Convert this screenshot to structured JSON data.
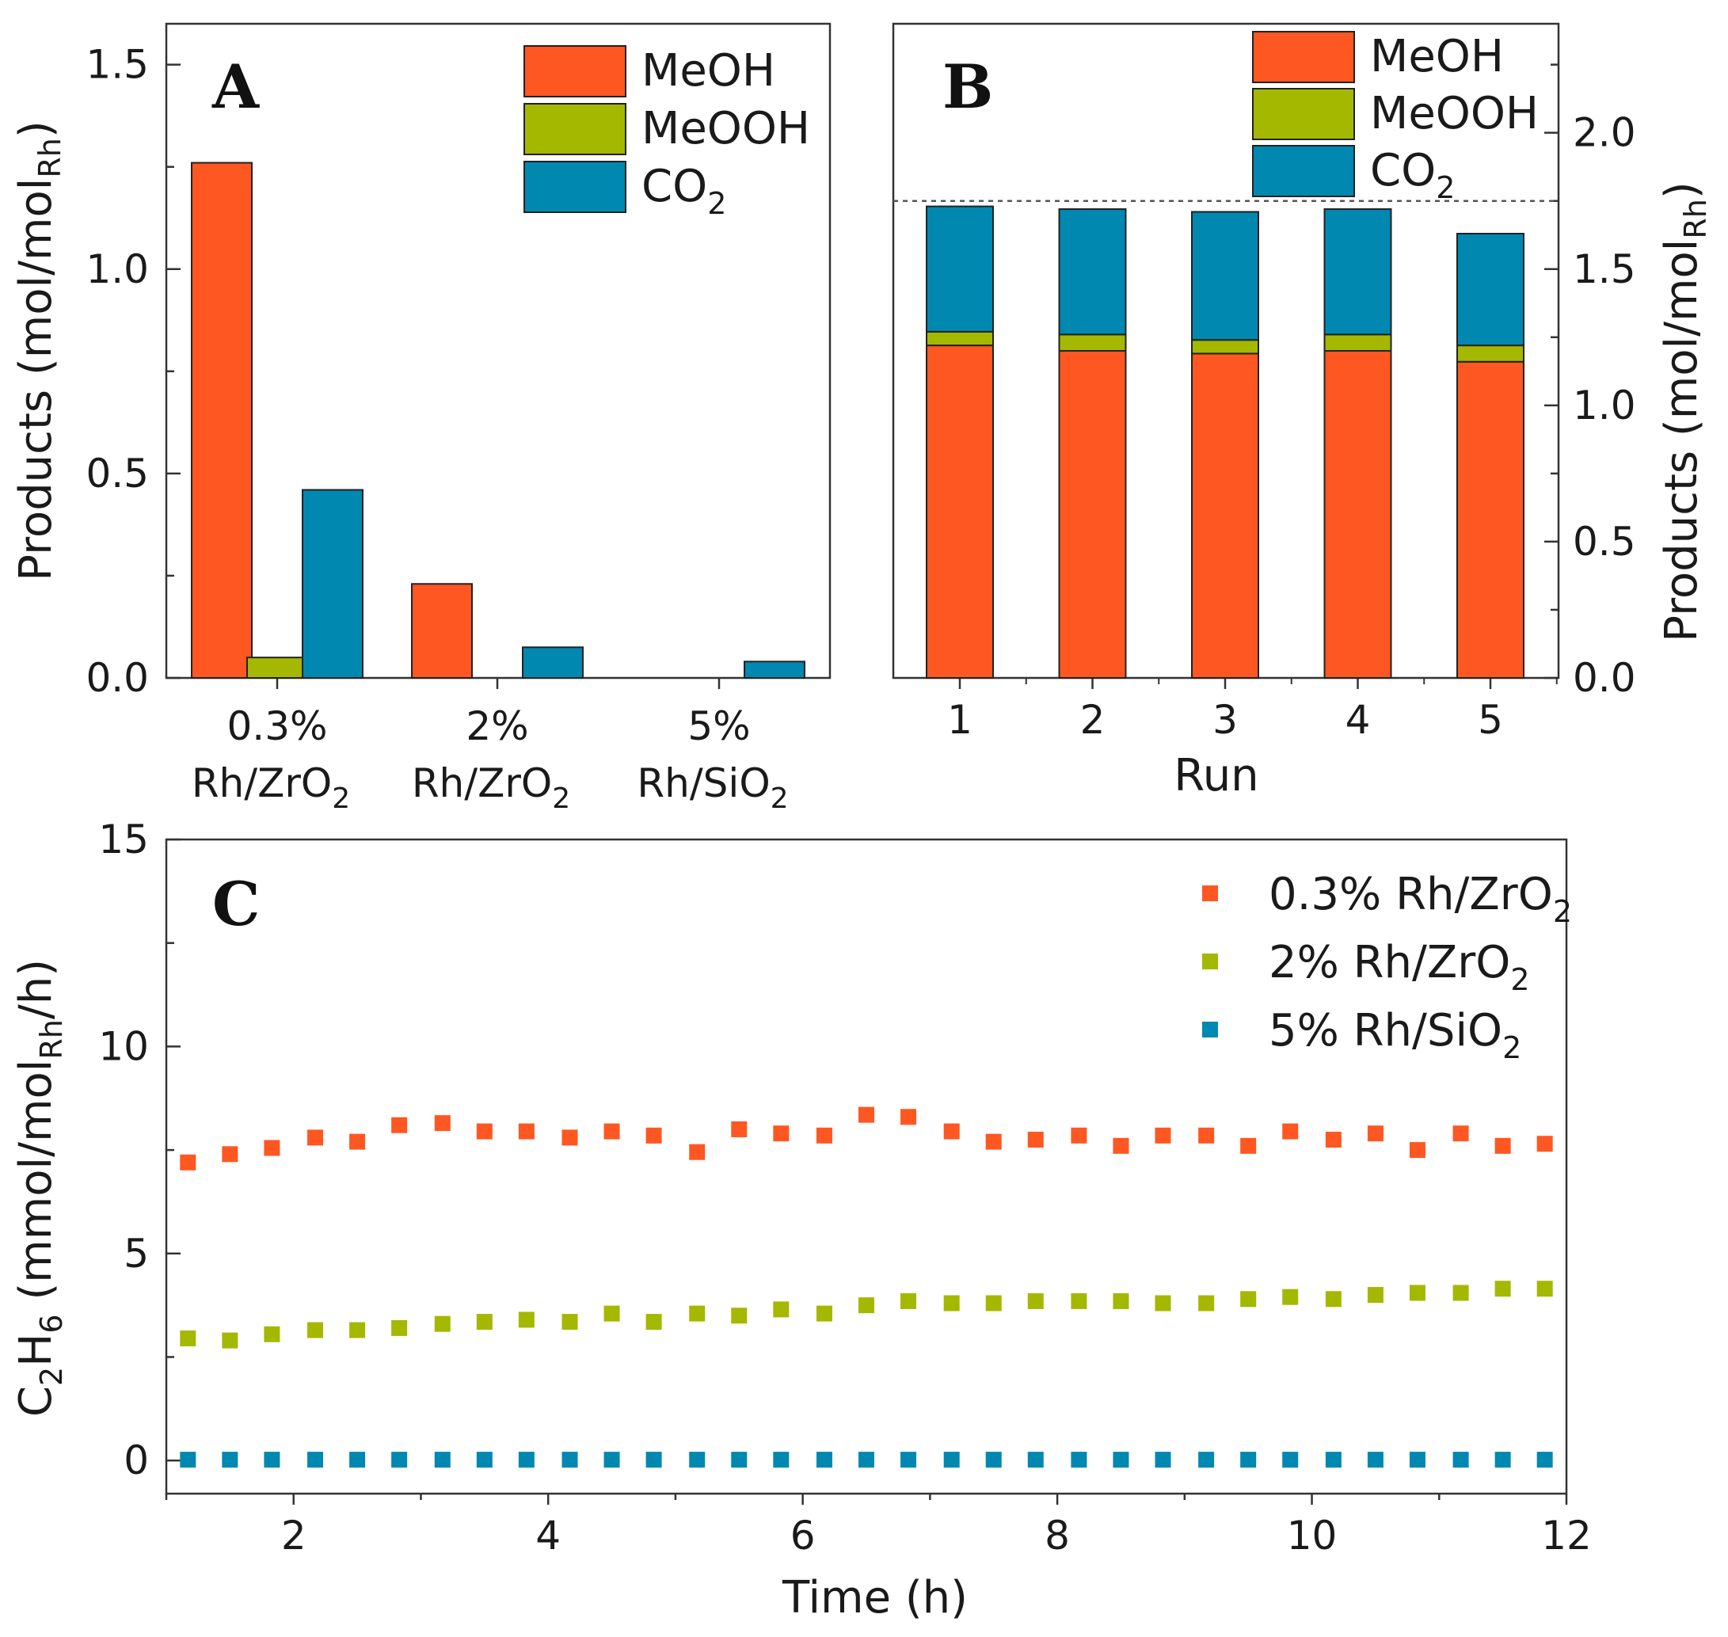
{
  "colors": {
    "meoh": "#ff5722",
    "meooh": "#a4b800",
    "co2": "#0088b0",
    "axis": "#333333"
  },
  "chart_data": [
    {
      "panel": "A",
      "type": "bar",
      "ylabel_main": "Products (mol/mol",
      "ylabel_sub": "Rh",
      "ylabel_end": ")",
      "ylim": [
        0,
        1.6
      ],
      "yticks": [
        "0.0",
        "0.5",
        "1.0",
        "1.5"
      ],
      "categories": [
        {
          "line1": "0.3%",
          "line2_main": "Rh/ZrO",
          "line2_sub": "2"
        },
        {
          "line1": "2%",
          "line2_main": "Rh/ZrO",
          "line2_sub": "2"
        },
        {
          "line1": "5%",
          "line2_main": "Rh/SiO",
          "line2_sub": "2"
        }
      ],
      "series": [
        {
          "name": "MeOH",
          "name_main": "MeOH",
          "name_sub": "",
          "values": [
            1.26,
            0.23,
            0.0
          ]
        },
        {
          "name": "MeOOH",
          "name_main": "MeOOH",
          "name_sub": "",
          "values": [
            0.05,
            0.0,
            0.0
          ]
        },
        {
          "name": "CO2",
          "name_main": "CO",
          "name_sub": "2",
          "values": [
            0.46,
            0.075,
            0.04
          ]
        }
      ]
    },
    {
      "panel": "B",
      "type": "bar",
      "stacked": true,
      "xlabel": "Run",
      "ylabel_main": "Products (mol/mol",
      "ylabel_sub": "Rh",
      "ylabel_end": ")",
      "ylim": [
        0,
        2.4
      ],
      "yticks": [
        "0.0",
        "0.5",
        "1.0",
        "1.5",
        "2.0"
      ],
      "categories": [
        "1",
        "2",
        "3",
        "4",
        "5"
      ],
      "reference_line": 1.75,
      "series": [
        {
          "name": "MeOH",
          "name_main": "MeOH",
          "name_sub": "",
          "values": [
            1.22,
            1.2,
            1.19,
            1.2,
            1.16
          ]
        },
        {
          "name": "MeOOH",
          "name_main": "MeOOH",
          "name_sub": "",
          "values": [
            0.05,
            0.06,
            0.05,
            0.06,
            0.06
          ]
        },
        {
          "name": "CO2",
          "name_main": "CO",
          "name_sub": "2",
          "values": [
            0.46,
            0.46,
            0.47,
            0.46,
            0.41
          ]
        }
      ]
    },
    {
      "panel": "C",
      "type": "scatter",
      "xlabel": "Time (h)",
      "ylabel_parts": [
        "C",
        "2",
        "H",
        "6",
        " (mmol/mol",
        "Rh",
        "/h)"
      ],
      "xlim": [
        1,
        12
      ],
      "ylim": [
        -0.8,
        15
      ],
      "xticks": [
        "2",
        "4",
        "6",
        "8",
        "10",
        "12"
      ],
      "yticks": [
        "0",
        "5",
        "10",
        "15"
      ],
      "x": [
        1.17,
        1.5,
        1.83,
        2.17,
        2.5,
        2.83,
        3.17,
        3.5,
        3.83,
        4.17,
        4.5,
        4.83,
        5.17,
        5.5,
        5.83,
        6.17,
        6.5,
        6.83,
        7.17,
        7.5,
        7.83,
        8.17,
        8.5,
        8.83,
        9.17,
        9.5,
        9.83,
        10.17,
        10.5,
        10.83,
        11.17,
        11.5,
        11.83
      ],
      "series": [
        {
          "name": "0.3% Rh/ZrO2",
          "name_main": "0.3% Rh/ZrO",
          "name_sub": "2",
          "values": [
            7.2,
            7.4,
            7.55,
            7.8,
            7.7,
            8.1,
            8.15,
            7.95,
            7.95,
            7.8,
            7.95,
            7.85,
            7.45,
            8.0,
            7.9,
            7.85,
            8.35,
            8.3,
            7.95,
            7.7,
            7.75,
            7.85,
            7.6,
            7.85,
            7.85,
            7.6,
            7.95,
            7.75,
            7.9,
            7.5,
            7.9,
            7.6,
            7.65
          ]
        },
        {
          "name": "2% Rh/ZrO2",
          "name_main": "2% Rh/ZrO",
          "name_sub": "2",
          "values": [
            2.95,
            2.9,
            3.05,
            3.15,
            3.15,
            3.2,
            3.3,
            3.35,
            3.4,
            3.35,
            3.55,
            3.35,
            3.55,
            3.5,
            3.65,
            3.55,
            3.75,
            3.85,
            3.8,
            3.8,
            3.85,
            3.85,
            3.85,
            3.8,
            3.8,
            3.9,
            3.95,
            3.9,
            4.0,
            4.05,
            4.05,
            4.15,
            4.15
          ]
        },
        {
          "name": "5% Rh/SiO2",
          "name_main": "5% Rh/SiO",
          "name_sub": "2",
          "values": [
            0.02,
            0.02,
            0.02,
            0.02,
            0.02,
            0.02,
            0.02,
            0.02,
            0.02,
            0.02,
            0.02,
            0.02,
            0.02,
            0.02,
            0.02,
            0.02,
            0.02,
            0.02,
            0.02,
            0.02,
            0.02,
            0.02,
            0.02,
            0.02,
            0.02,
            0.02,
            0.02,
            0.02,
            0.02,
            0.02,
            0.02,
            0.02,
            0.02
          ]
        }
      ]
    }
  ]
}
